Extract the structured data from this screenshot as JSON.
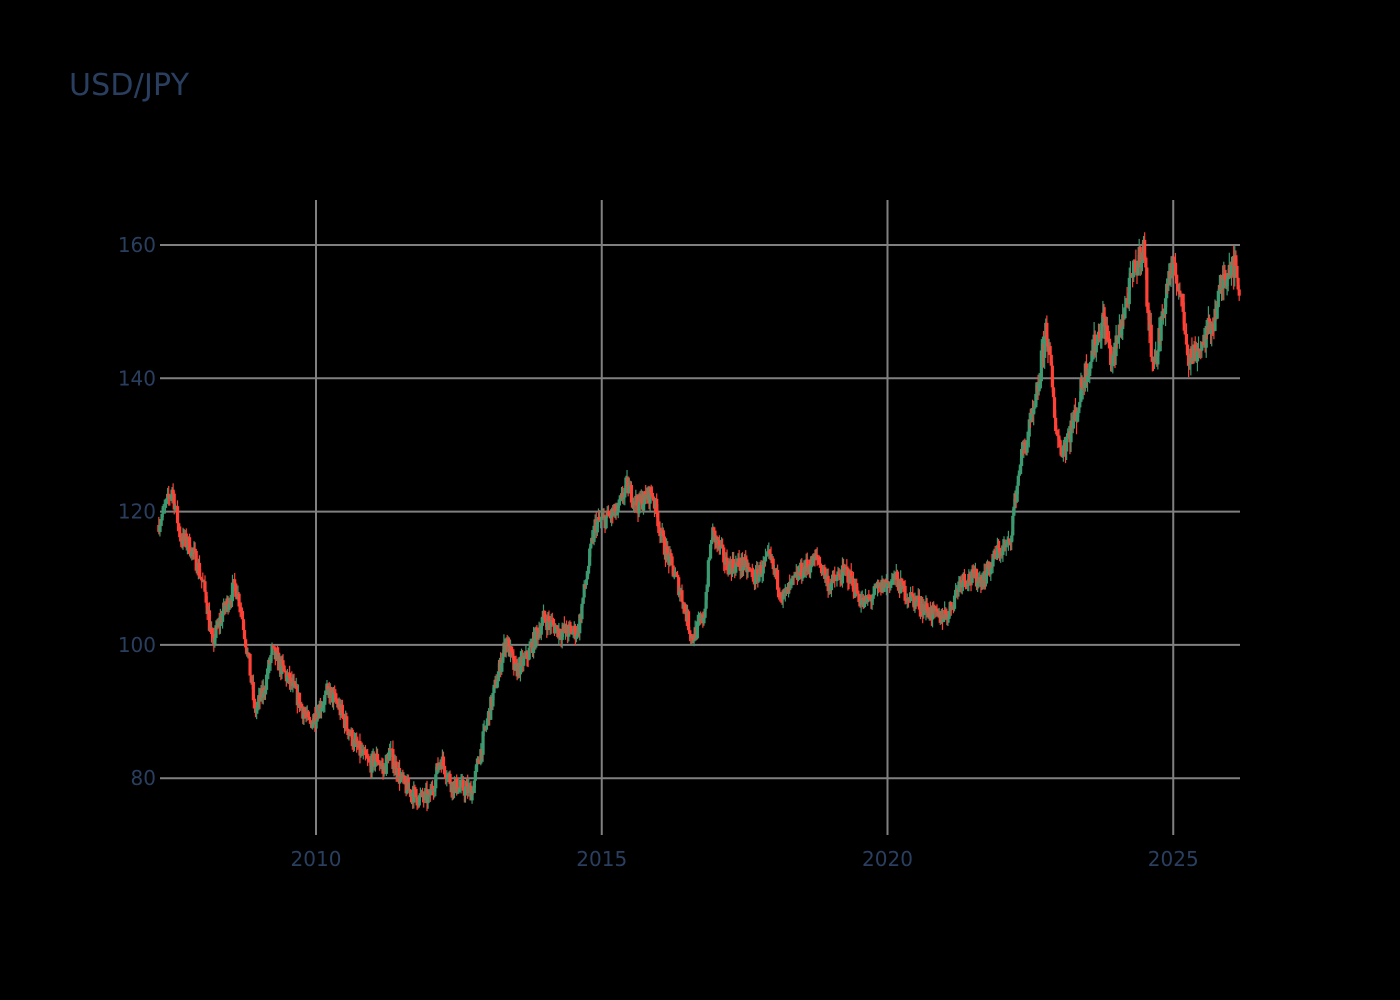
{
  "chart_data": {
    "type": "candlestick",
    "title": "USD/JPY",
    "xlabel": "",
    "ylabel": "",
    "x_ticks": [
      "2010",
      "2015",
      "2020",
      "2025"
    ],
    "y_ticks": [
      80,
      100,
      120,
      140,
      160
    ],
    "ylim": [
      70.5,
      166.5
    ],
    "xlim": [
      2007.25,
      2026.17
    ],
    "grid": true,
    "legend": "none",
    "colors": {
      "increasing": "#3d9970",
      "decreasing": "#ff4136",
      "grid": "#808080",
      "text": "#2a3f5f",
      "background": "#000000"
    },
    "frequency": "weekly",
    "price_path_anchors": [
      {
        "t": 2007.25,
        "p": 118
      },
      {
        "t": 2007.45,
        "p": 122
      },
      {
        "t": 2007.5,
        "p": 123.5
      },
      {
        "t": 2007.65,
        "p": 116
      },
      {
        "t": 2007.8,
        "p": 115
      },
      {
        "t": 2007.95,
        "p": 112
      },
      {
        "t": 2008.1,
        "p": 107
      },
      {
        "t": 2008.2,
        "p": 100
      },
      {
        "t": 2008.35,
        "p": 104
      },
      {
        "t": 2008.6,
        "p": 109
      },
      {
        "t": 2008.7,
        "p": 106
      },
      {
        "t": 2008.85,
        "p": 97
      },
      {
        "t": 2008.95,
        "p": 90
      },
      {
        "t": 2009.1,
        "p": 93
      },
      {
        "t": 2009.25,
        "p": 99
      },
      {
        "t": 2009.45,
        "p": 96
      },
      {
        "t": 2009.65,
        "p": 93
      },
      {
        "t": 2009.9,
        "p": 88
      },
      {
        "t": 2010.1,
        "p": 91
      },
      {
        "t": 2010.25,
        "p": 93
      },
      {
        "t": 2010.4,
        "p": 91
      },
      {
        "t": 2010.7,
        "p": 85
      },
      {
        "t": 2010.95,
        "p": 82
      },
      {
        "t": 2011.1,
        "p": 83
      },
      {
        "t": 2011.2,
        "p": 81
      },
      {
        "t": 2011.3,
        "p": 84
      },
      {
        "t": 2011.55,
        "p": 79
      },
      {
        "t": 2011.8,
        "p": 77
      },
      {
        "t": 2012.0,
        "p": 77
      },
      {
        "t": 2012.2,
        "p": 83
      },
      {
        "t": 2012.4,
        "p": 79
      },
      {
        "t": 2012.75,
        "p": 78
      },
      {
        "t": 2013.0,
        "p": 88
      },
      {
        "t": 2013.35,
        "p": 101
      },
      {
        "t": 2013.5,
        "p": 96
      },
      {
        "t": 2013.7,
        "p": 98
      },
      {
        "t": 2014.0,
        "p": 104
      },
      {
        "t": 2014.3,
        "p": 102
      },
      {
        "t": 2014.6,
        "p": 102
      },
      {
        "t": 2014.9,
        "p": 118
      },
      {
        "t": 2015.1,
        "p": 119
      },
      {
        "t": 2015.3,
        "p": 120
      },
      {
        "t": 2015.45,
        "p": 124
      },
      {
        "t": 2015.65,
        "p": 121
      },
      {
        "t": 2015.9,
        "p": 123
      },
      {
        "t": 2016.1,
        "p": 115
      },
      {
        "t": 2016.4,
        "p": 108
      },
      {
        "t": 2016.6,
        "p": 101
      },
      {
        "t": 2016.8,
        "p": 104
      },
      {
        "t": 2016.95,
        "p": 117
      },
      {
        "t": 2017.2,
        "p": 112
      },
      {
        "t": 2017.5,
        "p": 112
      },
      {
        "t": 2017.7,
        "p": 110
      },
      {
        "t": 2017.95,
        "p": 113
      },
      {
        "t": 2018.2,
        "p": 107
      },
      {
        "t": 2018.5,
        "p": 111
      },
      {
        "t": 2018.8,
        "p": 113
      },
      {
        "t": 2019.0,
        "p": 109
      },
      {
        "t": 2019.3,
        "p": 111
      },
      {
        "t": 2019.6,
        "p": 106
      },
      {
        "t": 2019.95,
        "p": 109
      },
      {
        "t": 2020.15,
        "p": 110
      },
      {
        "t": 2020.3,
        "p": 108
      },
      {
        "t": 2020.6,
        "p": 106
      },
      {
        "t": 2020.9,
        "p": 104
      },
      {
        "t": 2021.1,
        "p": 105
      },
      {
        "t": 2021.3,
        "p": 110
      },
      {
        "t": 2021.7,
        "p": 110
      },
      {
        "t": 2021.95,
        "p": 114
      },
      {
        "t": 2022.15,
        "p": 115
      },
      {
        "t": 2022.35,
        "p": 128
      },
      {
        "t": 2022.6,
        "p": 135
      },
      {
        "t": 2022.8,
        "p": 148
      },
      {
        "t": 2022.95,
        "p": 134
      },
      {
        "t": 2023.05,
        "p": 129
      },
      {
        "t": 2023.3,
        "p": 134
      },
      {
        "t": 2023.45,
        "p": 140
      },
      {
        "t": 2023.8,
        "p": 149
      },
      {
        "t": 2023.95,
        "p": 142
      },
      {
        "t": 2024.1,
        "p": 148
      },
      {
        "t": 2024.3,
        "p": 155
      },
      {
        "t": 2024.5,
        "p": 160
      },
      {
        "t": 2024.6,
        "p": 147
      },
      {
        "t": 2024.7,
        "p": 142
      },
      {
        "t": 2024.95,
        "p": 156
      },
      {
        "t": 2025.1,
        "p": 155
      },
      {
        "t": 2025.3,
        "p": 143
      },
      {
        "t": 2025.5,
        "p": 145
      },
      {
        "t": 2025.7,
        "p": 148
      },
      {
        "t": 2025.9,
        "p": 155
      },
      {
        "t": 2026.05,
        "p": 158
      },
      {
        "t": 2026.17,
        "p": 154
      }
    ]
  }
}
